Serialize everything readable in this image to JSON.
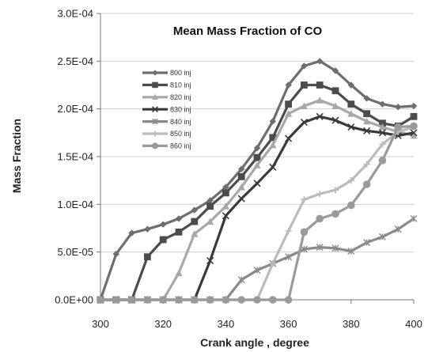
{
  "chart_data": {
    "type": "line",
    "title": "Mean Mass Fraction of CO",
    "xlabel": "Crank angle , degree",
    "ylabel": "Mass Fraction",
    "xlim": [
      300,
      400
    ],
    "ylim": [
      0,
      0.0003
    ],
    "x_ticks": [
      "300",
      "320",
      "340",
      "360",
      "380",
      "400"
    ],
    "y_ticks": [
      "0.0E+00",
      "5.0E-05",
      "1.0E-04",
      "1.5E-04",
      "2.0E-04",
      "2.5E-04",
      "3.0E-04"
    ],
    "x": [
      300,
      305,
      310,
      315,
      320,
      325,
      330,
      335,
      340,
      345,
      350,
      355,
      360,
      365,
      370,
      375,
      380,
      385,
      390,
      395,
      400
    ],
    "legend_position": "upper-left",
    "series": [
      {
        "name": "800 inj",
        "color": "#6e6e6e",
        "marker": "diamond",
        "values": [
          0,
          4.8e-05,
          7e-05,
          7.4e-05,
          7.9e-05,
          8.5e-05,
          9.4e-05,
          0.000104,
          0.000118,
          0.000137,
          0.000159,
          0.000187,
          0.000225,
          0.000245,
          0.00025,
          0.00024,
          0.000225,
          0.000211,
          0.000205,
          0.000202,
          0.000203
        ]
      },
      {
        "name": "810 inj",
        "color": "#4c4c4c",
        "marker": "square",
        "values": [
          0,
          0,
          0,
          4.5e-05,
          6.3e-05,
          7.1e-05,
          8.2e-05,
          9.8e-05,
          0.000112,
          0.000129,
          0.000149,
          0.00017,
          0.000205,
          0.000225,
          0.000225,
          0.000219,
          0.000205,
          0.000195,
          0.000185,
          0.000182,
          0.000192
        ]
      },
      {
        "name": "820 inj",
        "color": "#a8a8a8",
        "marker": "triangle",
        "values": [
          0,
          0,
          0,
          0,
          0,
          2.8e-05,
          6.9e-05,
          8.2e-05,
          9.8e-05,
          0.000118,
          0.000141,
          0.000162,
          0.000195,
          0.000203,
          0.000209,
          0.000203,
          0.000195,
          0.000187,
          0.000181,
          0.000176,
          0.000172
        ]
      },
      {
        "name": "830 inj",
        "color": "#3a3a3a",
        "marker": "x",
        "values": [
          0,
          0,
          0,
          0,
          0,
          0,
          0,
          4.1e-05,
          8.8e-05,
          0.000106,
          0.000122,
          0.000139,
          0.000169,
          0.000186,
          0.000192,
          0.000188,
          0.000181,
          0.000177,
          0.000175,
          0.000172,
          0.000175
        ]
      },
      {
        "name": "840 inj",
        "color": "#8a8a8a",
        "marker": "star",
        "values": [
          0,
          0,
          0,
          0,
          0,
          0,
          0,
          0,
          0,
          2.1e-05,
          3.1e-05,
          3.8e-05,
          4.5e-05,
          5.3e-05,
          5.5e-05,
          5.4e-05,
          5.1e-05,
          6e-05,
          6.6e-05,
          7.4e-05,
          8.5e-05
        ]
      },
      {
        "name": "850 inj",
        "color": "#bbbbbb",
        "marker": "plus",
        "values": [
          0,
          0,
          0,
          0,
          0,
          0,
          0,
          0,
          0,
          0,
          0,
          3.8e-05,
          7.2e-05,
          0.000105,
          0.000111,
          0.000115,
          0.000125,
          0.000142,
          0.000163,
          0.000176,
          0.000181
        ]
      },
      {
        "name": "860 inj",
        "color": "#9a9a9a",
        "marker": "circle",
        "values": [
          0,
          0,
          0,
          0,
          0,
          0,
          0,
          0,
          0,
          0,
          0,
          0,
          0,
          7.1e-05,
          8.5e-05,
          9e-05,
          9.9e-05,
          0.000121,
          0.000146,
          0.000181,
          0.000182
        ]
      }
    ]
  }
}
